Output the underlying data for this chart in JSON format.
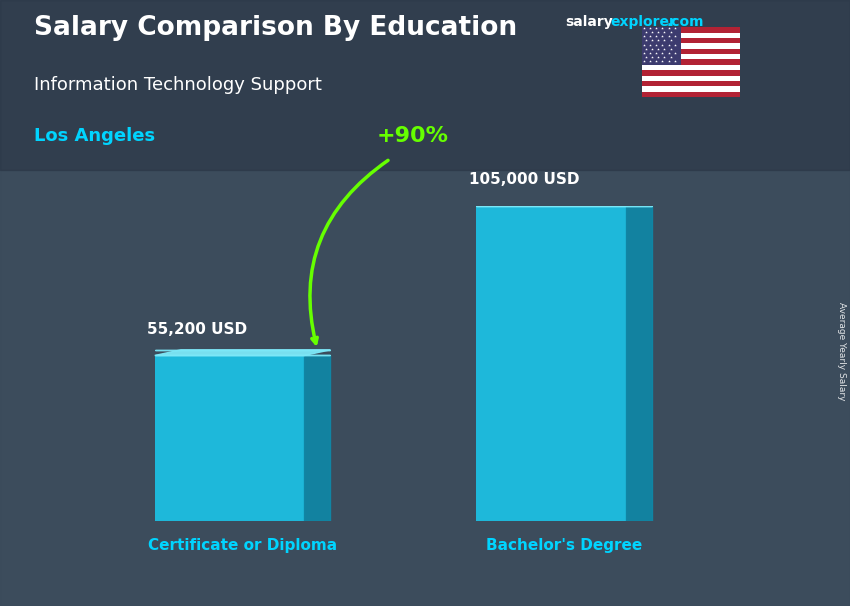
{
  "title_main": "Salary Comparison By Education",
  "title_sub": "Information Technology Support",
  "location": "Los Angeles",
  "watermark_salary": "salary",
  "watermark_explorer": "explorer",
  "watermark_com": ".com",
  "ylabel_rotated": "Average Yearly Salary",
  "categories": [
    "Certificate or Diploma",
    "Bachelor's Degree"
  ],
  "values": [
    55200,
    105000
  ],
  "value_labels": [
    "55,200 USD",
    "105,000 USD"
  ],
  "pct_label": "+90%",
  "bar_color_face": "#1ac8ed",
  "bar_color_dark": "#0d8aaa",
  "bar_color_top": "#7de8f8",
  "pct_color": "#66ff00",
  "location_color": "#00d4ff",
  "cat_label_color": "#00d4ff",
  "title_color": "#ffffff",
  "sub_color": "#ffffff",
  "value_label_color": "#ffffff",
  "bg_color": "#4a5568",
  "overlay_color": "#2d3748",
  "overlay_alpha": 0.45
}
